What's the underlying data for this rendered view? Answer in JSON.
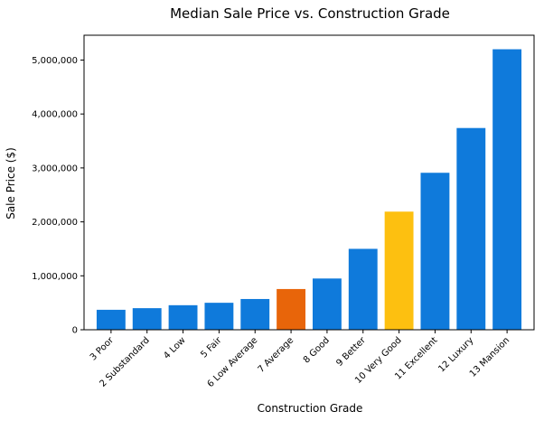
{
  "chart_data": {
    "type": "bar",
    "title": "Median Sale Price vs. Construction Grade",
    "xlabel": "Construction Grade",
    "ylabel": "Sale Price ($)",
    "categories": [
      "3 Poor",
      "2 Substandard",
      "4 Low",
      "5 Fair",
      "6 Low Average",
      "7 Average",
      "8 Good",
      "9 Better",
      "10 Very Good",
      "11 Excellent",
      "12 Luxury",
      "13 Mansion"
    ],
    "values": [
      370000,
      400000,
      455000,
      500000,
      570000,
      755000,
      950000,
      1500000,
      2190000,
      2910000,
      3740000,
      5200000
    ],
    "colors": [
      "#0f7adb",
      "#0f7adb",
      "#0f7adb",
      "#0f7adb",
      "#0f7adb",
      "#e8650a",
      "#0f7adb",
      "#0f7adb",
      "#fdc010",
      "#0f7adb",
      "#0f7adb",
      "#0f7adb"
    ],
    "ylim": [
      0,
      5460000
    ],
    "yticks": [
      0,
      1000000,
      2000000,
      3000000,
      4000000,
      5000000
    ],
    "ytick_labels": [
      "0",
      "1,000,000",
      "2,000,000",
      "3,000,000",
      "4,000,000",
      "5,000,000"
    ],
    "grid": false,
    "legend": "none"
  }
}
